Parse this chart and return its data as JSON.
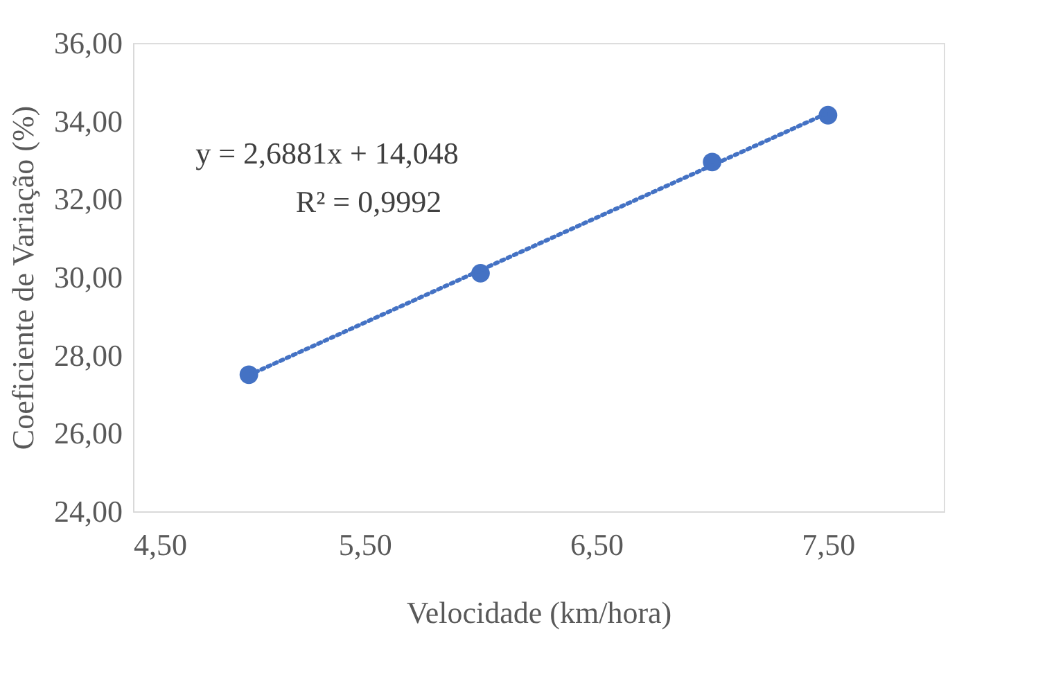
{
  "chart_data": {
    "type": "scatter",
    "xlabel": "Velocidade (km/hora)",
    "ylabel": "Coeficiente de Variação (%)",
    "x": [
      5,
      6,
      7,
      7.5
    ],
    "series": [
      {
        "color": "#4472c4",
        "marker": "circle",
        "values": [
          27.5,
          30.1,
          32.95,
          34.15
        ]
      },
      {
        "type": "line",
        "color": "#4472c4",
        "line_style": "dotted",
        "x": [
          5,
          7.5
        ],
        "values": [
          27.49,
          34.21
        ]
      }
    ],
    "xlim": [
      4.5,
      8.0
    ],
    "ylim": [
      24,
      36
    ],
    "xticks": [
      {
        "value": 4.5,
        "label": "4,50"
      },
      {
        "value": 5.5,
        "label": "5,50"
      },
      {
        "value": 6.5,
        "label": "6,50"
      },
      {
        "value": 7.5,
        "label": "7,50"
      }
    ],
    "yticks": [
      {
        "value": 24,
        "label": "24,00"
      },
      {
        "value": 26,
        "label": "26,00"
      },
      {
        "value": 28,
        "label": "28,00"
      },
      {
        "value": 30,
        "label": "30,00"
      },
      {
        "value": 32,
        "label": "32,00"
      },
      {
        "value": 34,
        "label": "34,00"
      },
      {
        "value": 36,
        "label": "36,00"
      }
    ],
    "annotations": [
      "y = 2,6881x + 14,048",
      "R² = 0,9992"
    ],
    "grid": false
  }
}
